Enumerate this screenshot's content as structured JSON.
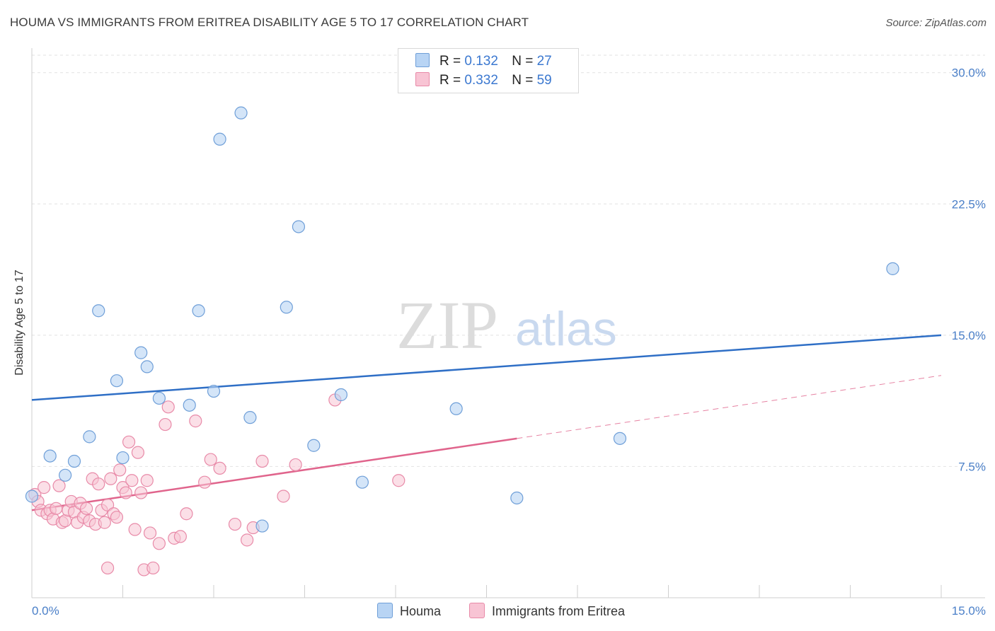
{
  "header": {
    "title": "HOUMA VS IMMIGRANTS FROM ERITREA DISABILITY AGE 5 TO 17 CORRELATION CHART",
    "source": "Source: ZipAtlas.com"
  },
  "watermark": {
    "zip": "ZIP",
    "atlas": "atlas"
  },
  "legend_top": {
    "rows": [
      {
        "r_label": "R =",
        "r_value": "0.132",
        "n_label": "N =",
        "n_value": "27"
      },
      {
        "r_label": "R =",
        "r_value": "0.332",
        "n_label": "N =",
        "n_value": "59"
      }
    ]
  },
  "legend_bottom": {
    "houma": "Houma",
    "eritrea": "Immigrants from Eritrea"
  },
  "colors": {
    "houma_fill": "#b8d4f4",
    "houma_stroke": "#6f9fd8",
    "houma_line": "#2f6fc6",
    "eritrea_fill": "#f8c4d4",
    "eritrea_stroke": "#e88aa8",
    "eritrea_line": "#e0648c",
    "grid": "#e2e2e2",
    "axis_text": "#4a7fc8"
  },
  "chart_data": {
    "type": "scatter",
    "title": "HOUMA VS IMMIGRANTS FROM ERITREA DISABILITY AGE 5 TO 17 CORRELATION CHART",
    "xlabel": "",
    "ylabel": "Disability Age 5 to 17",
    "xlim": [
      0,
      15
    ],
    "ylim": [
      0,
      31
    ],
    "x_tick_labels": [
      "0.0%",
      "15.0%"
    ],
    "y_ticks": [
      7.5,
      15.0,
      22.5,
      30.0
    ],
    "y_tick_labels": [
      "7.5%",
      "15.0%",
      "22.5%",
      "30.0%"
    ],
    "grid": true,
    "legend": "top-center",
    "series": [
      {
        "name": "Houma",
        "color": "#6f9fd8",
        "points": [
          [
            0.0,
            5.8
          ],
          [
            0.3,
            8.1
          ],
          [
            0.55,
            7.0
          ],
          [
            0.7,
            7.8
          ],
          [
            0.95,
            9.2
          ],
          [
            1.1,
            16.4
          ],
          [
            1.4,
            12.4
          ],
          [
            1.5,
            8.0
          ],
          [
            1.8,
            14.0
          ],
          [
            1.9,
            13.2
          ],
          [
            2.1,
            11.4
          ],
          [
            2.6,
            11.0
          ],
          [
            2.75,
            16.4
          ],
          [
            3.0,
            11.8
          ],
          [
            3.1,
            26.2
          ],
          [
            3.45,
            27.7
          ],
          [
            3.6,
            10.3
          ],
          [
            3.8,
            4.1
          ],
          [
            4.2,
            16.6
          ],
          [
            4.4,
            21.2
          ],
          [
            4.65,
            8.7
          ],
          [
            5.1,
            11.6
          ],
          [
            5.45,
            6.6
          ],
          [
            7.0,
            10.8
          ],
          [
            8.0,
            5.7
          ],
          [
            9.7,
            9.1
          ],
          [
            14.2,
            18.8
          ]
        ],
        "trend": {
          "x": [
            0,
            15
          ],
          "y": [
            11.3,
            15.0
          ]
        }
      },
      {
        "name": "Immigrants from Eritrea",
        "color": "#e88aa8",
        "points": [
          [
            0.05,
            5.9
          ],
          [
            0.1,
            5.5
          ],
          [
            0.15,
            5.0
          ],
          [
            0.2,
            6.3
          ],
          [
            0.25,
            4.8
          ],
          [
            0.3,
            5.0
          ],
          [
            0.35,
            4.5
          ],
          [
            0.4,
            5.1
          ],
          [
            0.45,
            6.4
          ],
          [
            0.5,
            4.3
          ],
          [
            0.55,
            4.4
          ],
          [
            0.6,
            5.0
          ],
          [
            0.65,
            5.5
          ],
          [
            0.7,
            4.9
          ],
          [
            0.75,
            4.3
          ],
          [
            0.8,
            5.4
          ],
          [
            0.85,
            4.6
          ],
          [
            0.9,
            5.1
          ],
          [
            0.95,
            4.4
          ],
          [
            1.0,
            6.8
          ],
          [
            1.05,
            4.2
          ],
          [
            1.1,
            6.5
          ],
          [
            1.15,
            5.0
          ],
          [
            1.2,
            4.3
          ],
          [
            1.25,
            5.3
          ],
          [
            1.3,
            6.8
          ],
          [
            1.35,
            4.8
          ],
          [
            1.4,
            4.6
          ],
          [
            1.45,
            7.3
          ],
          [
            1.5,
            6.3
          ],
          [
            1.55,
            6.0
          ],
          [
            1.6,
            8.9
          ],
          [
            1.65,
            6.7
          ],
          [
            1.7,
            3.9
          ],
          [
            1.75,
            8.3
          ],
          [
            1.8,
            6.0
          ],
          [
            1.85,
            1.6
          ],
          [
            1.9,
            6.7
          ],
          [
            1.95,
            3.7
          ],
          [
            2.0,
            1.7
          ],
          [
            2.1,
            3.1
          ],
          [
            2.2,
            9.9
          ],
          [
            2.25,
            10.9
          ],
          [
            2.35,
            3.4
          ],
          [
            2.45,
            3.5
          ],
          [
            2.55,
            4.8
          ],
          [
            2.7,
            10.1
          ],
          [
            2.85,
            6.6
          ],
          [
            2.95,
            7.9
          ],
          [
            3.1,
            7.4
          ],
          [
            3.35,
            4.2
          ],
          [
            3.55,
            3.3
          ],
          [
            3.65,
            4.0
          ],
          [
            3.8,
            7.8
          ],
          [
            4.15,
            5.8
          ],
          [
            4.35,
            7.6
          ],
          [
            5.0,
            11.3
          ],
          [
            6.05,
            6.7
          ],
          [
            1.25,
            1.7
          ]
        ],
        "trend": {
          "x": [
            0,
            8
          ],
          "y": [
            5.0,
            9.1
          ]
        },
        "trend_projection": {
          "x": [
            8,
            15
          ],
          "y": [
            9.1,
            12.7
          ]
        }
      }
    ]
  }
}
